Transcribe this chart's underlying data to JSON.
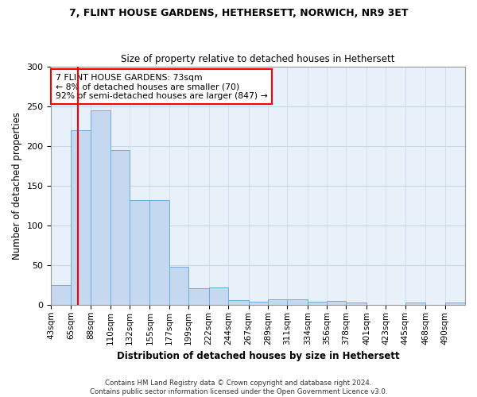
{
  "title1": "7, FLINT HOUSE GARDENS, HETHERSETT, NORWICH, NR9 3ET",
  "title2": "Size of property relative to detached houses in Hethersett",
  "xlabel": "Distribution of detached houses by size in Hethersett",
  "ylabel": "Number of detached properties",
  "footer1": "Contains HM Land Registry data © Crown copyright and database right 2024.",
  "footer2": "Contains public sector information licensed under the Open Government Licence v3.0.",
  "bin_labels": [
    "43sqm",
    "65sqm",
    "88sqm",
    "110sqm",
    "132sqm",
    "155sqm",
    "177sqm",
    "199sqm",
    "222sqm",
    "244sqm",
    "267sqm",
    "289sqm",
    "311sqm",
    "334sqm",
    "356sqm",
    "378sqm",
    "401sqm",
    "423sqm",
    "445sqm",
    "468sqm",
    "490sqm"
  ],
  "bar_values": [
    25,
    220,
    245,
    195,
    132,
    132,
    48,
    21,
    22,
    6,
    4,
    7,
    7,
    4,
    5,
    3,
    0,
    0,
    3,
    0,
    3
  ],
  "bar_color": "#c5d8f0",
  "bar_edge_color": "#6baed6",
  "grid_color": "#c8d8ec",
  "bg_color": "#e8f0fa",
  "marker_color": "red",
  "annotation_text": "7 FLINT HOUSE GARDENS: 73sqm\n← 8% of detached houses are smaller (70)\n92% of semi-detached houses are larger (847) →",
  "annotation_box_color": "white",
  "annotation_box_edge": "red",
  "ylim": [
    0,
    300
  ],
  "yticks": [
    0,
    50,
    100,
    150,
    200,
    250,
    300
  ],
  "bin_edges": [
    43,
    65,
    88,
    110,
    132,
    155,
    177,
    199,
    222,
    244,
    267,
    289,
    311,
    334,
    356,
    378,
    401,
    423,
    445,
    468,
    490,
    513
  ],
  "property_sqm": 73
}
